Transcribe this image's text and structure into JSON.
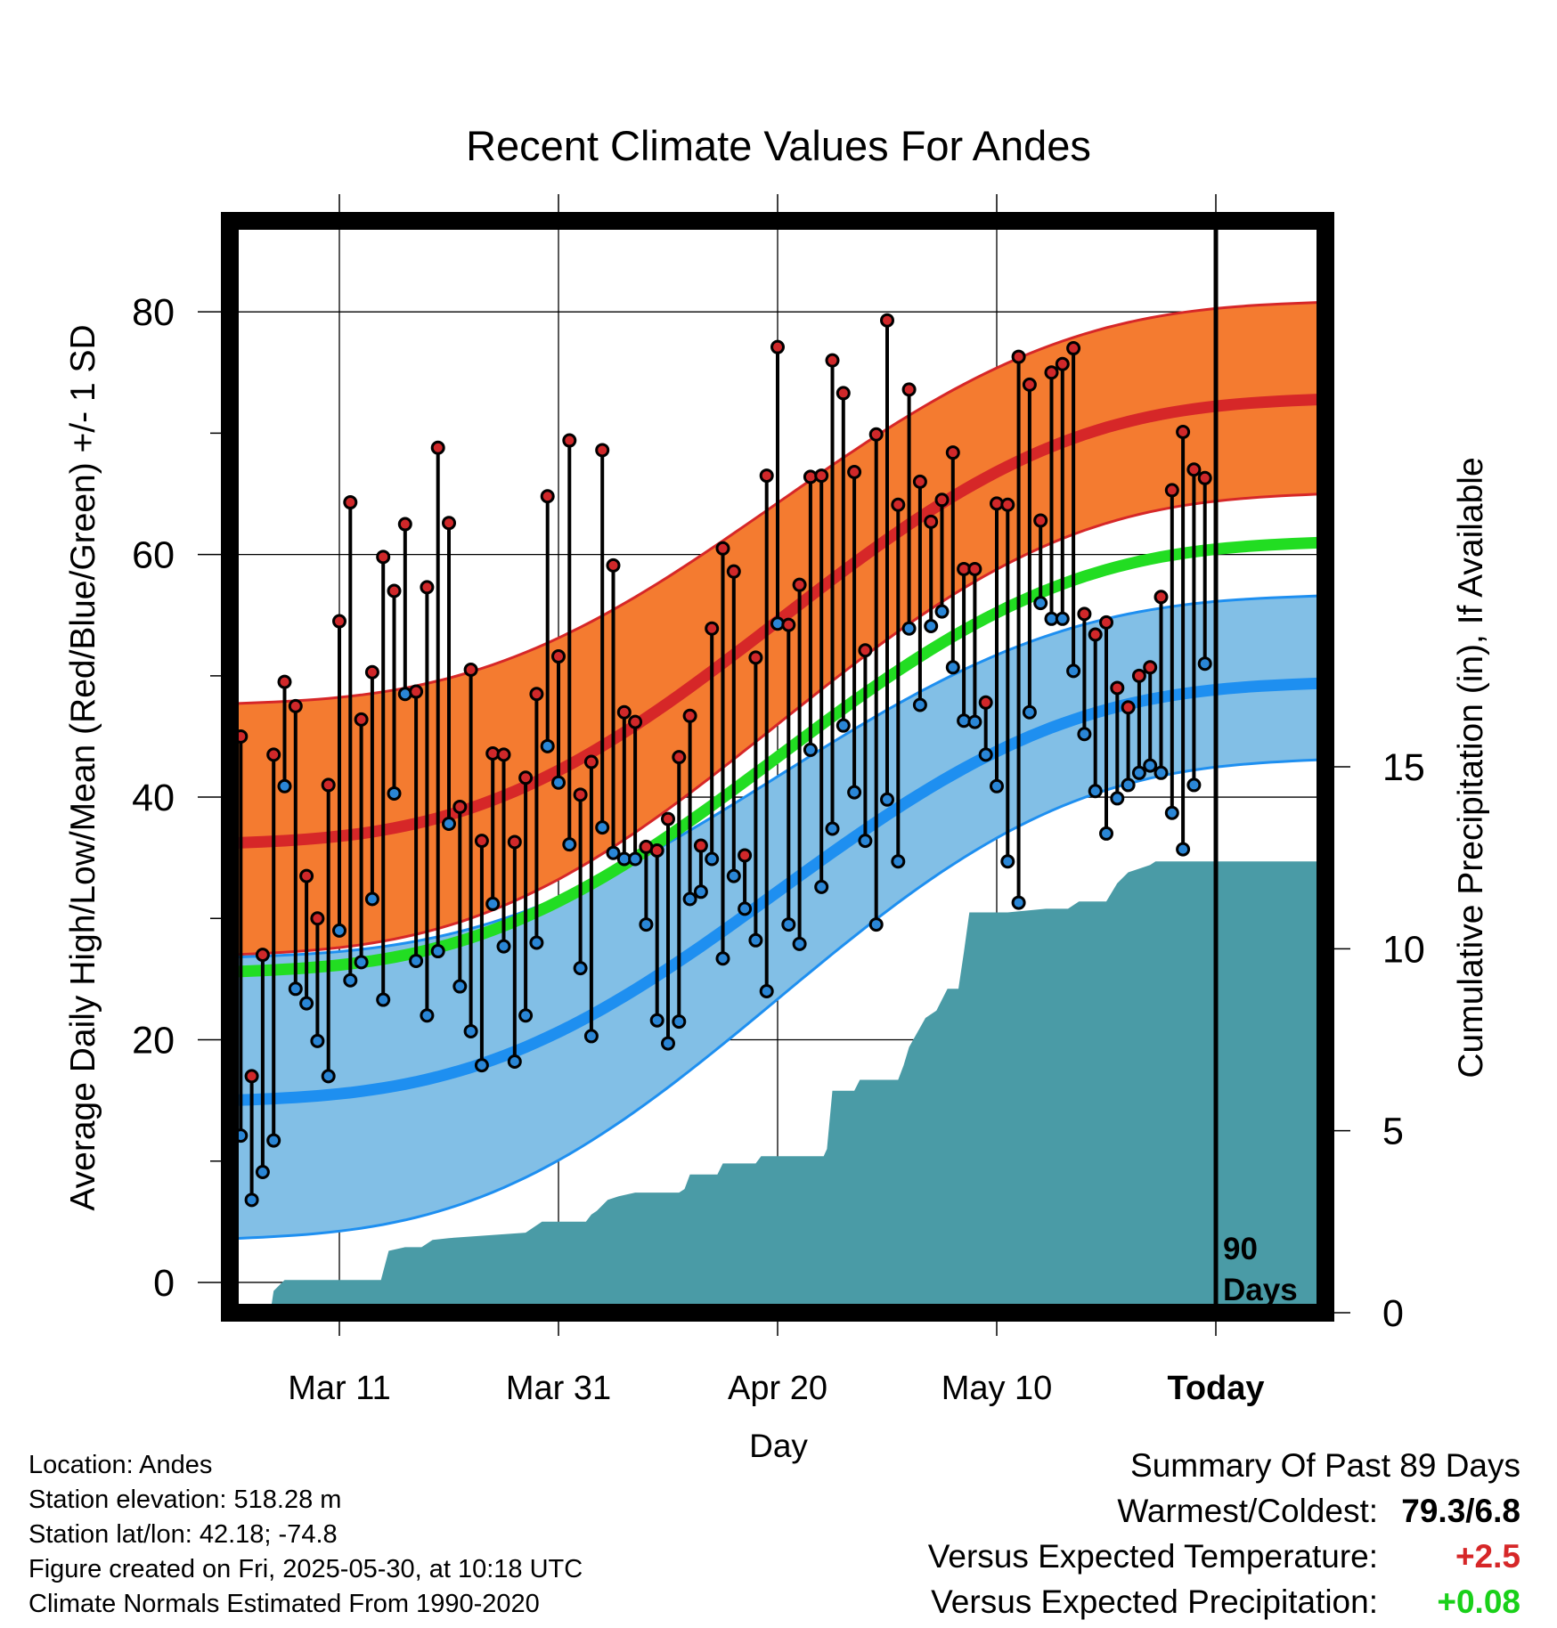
{
  "chart_data": {
    "type": "line",
    "title": "Recent Climate Values For Andes",
    "xlabel": "Day",
    "ylabel": "Average Daily High/Low/Mean (Red/Blue/Green) +/- 1 SD",
    "y2label": "Cumulative Precipitation (in), If Available",
    "x_range_days": [
      -90,
      10
    ],
    "x_ticks": [
      {
        "day": -80,
        "label": "Mar 11"
      },
      {
        "day": -60,
        "label": "Mar 31"
      },
      {
        "day": -40,
        "label": "Apr 20"
      },
      {
        "day": -20,
        "label": "May 10"
      },
      {
        "day": 0,
        "label": "Today"
      }
    ],
    "ylim": [
      -2.5,
      87.5
    ],
    "y_ticks": [
      0,
      20,
      40,
      60,
      80
    ],
    "y2lim": [
      0,
      30
    ],
    "y2_ticks": [
      0,
      5,
      10,
      15
    ],
    "today_marker_label_line1": "90",
    "today_marker_label_line2": "Days",
    "normal_high": {
      "start": 36.2,
      "end": 72.8,
      "sd_upper_start": 47.7,
      "sd_upper_end": 80.8,
      "sd_lower_start": 27.0,
      "sd_lower_end": 65.0
    },
    "normal_mean": {
      "start": 25.6,
      "end": 61.0
    },
    "normal_low": {
      "start": 15.0,
      "end": 49.4,
      "sd_upper_start": 26.8,
      "sd_upper_end": 56.6,
      "sd_lower_start": 3.6,
      "sd_lower_end": 43.1
    },
    "colors": {
      "high_band": "#f47b30",
      "high_mean_line": "#d62728",
      "mean_line": "#22dd22",
      "low_band": "#82bfe6",
      "low_mean_line": "#1e8ff0",
      "precip_fill": "#4a9ba6",
      "high_marker": "#d0282a",
      "low_marker": "#2a86d6"
    },
    "series": [
      {
        "name": "High",
        "values": [
          45.0,
          17.0,
          27.0,
          43.5,
          49.5,
          47.5,
          33.5,
          30.0,
          41.0,
          54.5,
          64.3,
          46.4,
          50.3,
          59.8,
          57.0,
          62.5,
          48.7,
          57.3,
          68.8,
          62.6,
          39.2,
          50.5,
          36.4,
          43.6,
          43.5,
          36.3,
          41.6,
          48.5,
          64.8,
          51.6,
          69.4,
          40.2,
          42.9,
          68.6,
          59.1,
          47.0,
          46.2,
          35.9,
          35.6,
          38.2,
          43.3,
          46.7,
          36.0,
          53.9,
          60.5,
          58.6,
          35.2,
          51.5,
          66.5,
          77.1,
          54.2,
          57.5,
          66.4,
          66.5,
          76.0,
          73.3,
          66.8,
          52.1,
          69.9,
          79.3,
          64.1,
          73.6,
          66.0,
          62.7,
          64.5,
          68.4,
          58.8,
          58.8,
          47.8,
          64.2,
          64.1,
          76.3,
          74.0,
          62.8,
          75.0,
          75.7,
          77.0,
          55.1,
          53.4,
          54.4,
          49.0,
          47.4,
          50.0,
          50.7,
          56.5,
          65.3,
          70.1,
          67.0,
          66.3
        ]
      },
      {
        "name": "Low",
        "values": [
          12.1,
          6.8,
          9.1,
          11.7,
          40.9,
          24.2,
          23.0,
          19.9,
          17.0,
          29.0,
          24.9,
          26.4,
          31.6,
          23.3,
          40.3,
          48.5,
          26.5,
          22.0,
          27.3,
          37.8,
          24.4,
          20.7,
          17.9,
          31.2,
          27.7,
          18.2,
          22.0,
          28.0,
          44.2,
          41.2,
          36.1,
          25.9,
          20.3,
          37.5,
          35.4,
          34.9,
          34.9,
          29.5,
          21.6,
          19.7,
          21.5,
          31.6,
          32.2,
          34.9,
          26.7,
          33.5,
          30.8,
          28.2,
          24.0,
          54.3,
          29.5,
          27.9,
          43.9,
          32.6,
          37.4,
          45.9,
          40.4,
          36.4,
          29.5,
          39.8,
          34.7,
          53.9,
          47.6,
          54.1,
          55.3,
          50.7,
          46.3,
          46.2,
          43.5,
          40.9,
          34.7,
          31.3,
          47.0,
          56.0,
          54.7,
          54.7,
          50.4,
          45.2,
          40.5,
          37.0,
          39.9,
          41.0,
          42.0,
          42.6,
          42.0,
          38.7,
          35.7,
          41.0,
          51.0
        ]
      }
    ],
    "precip_steps": [
      [
        -86.3,
        0.0
      ],
      [
        -86.0,
        0.6
      ],
      [
        -85.0,
        0.9
      ],
      [
        -76.2,
        0.9
      ],
      [
        -75.5,
        1.7
      ],
      [
        -74.0,
        1.8
      ],
      [
        -72.5,
        1.8
      ],
      [
        -71.5,
        2.0
      ],
      [
        -70.0,
        2.05
      ],
      [
        -63.0,
        2.2
      ],
      [
        -61.5,
        2.5
      ],
      [
        -57.5,
        2.5
      ],
      [
        -57.0,
        2.7
      ],
      [
        -56.5,
        2.8
      ],
      [
        -55.5,
        3.1
      ],
      [
        -54.5,
        3.2
      ],
      [
        -53.0,
        3.3
      ],
      [
        -49.0,
        3.3
      ],
      [
        -48.5,
        3.4
      ],
      [
        -48.0,
        3.8
      ],
      [
        -45.5,
        3.8
      ],
      [
        -45.0,
        4.1
      ],
      [
        -42.0,
        4.1
      ],
      [
        -41.5,
        4.3
      ],
      [
        -35.8,
        4.3
      ],
      [
        -35.5,
        4.5
      ],
      [
        -35.0,
        6.1
      ],
      [
        -33.0,
        6.1
      ],
      [
        -32.5,
        6.4
      ],
      [
        -29.0,
        6.4
      ],
      [
        -28.5,
        6.8
      ],
      [
        -28.0,
        7.3
      ],
      [
        -26.5,
        8.1
      ],
      [
        -25.5,
        8.3
      ],
      [
        -24.5,
        8.9
      ],
      [
        -23.5,
        8.9
      ],
      [
        -23.0,
        9.9
      ],
      [
        -22.5,
        11.0
      ],
      [
        -19.0,
        11.0
      ],
      [
        -15.5,
        11.1
      ],
      [
        -13.5,
        11.1
      ],
      [
        -12.5,
        11.3
      ],
      [
        -10.0,
        11.3
      ],
      [
        -9.0,
        11.8
      ],
      [
        -8.0,
        12.1
      ],
      [
        -6.0,
        12.3
      ],
      [
        -5.5,
        12.4
      ],
      [
        -4.5,
        12.4
      ],
      [
        10.0,
        12.4
      ]
    ]
  },
  "info": {
    "location": "Location: Andes",
    "elevation": "Station elevation: 518.28 m",
    "latlon": "Station lat/lon: 42.18; -74.8",
    "created": "Figure created on Fri, 2025-05-30, at 10:18 UTC",
    "normals": "Climate Normals Estimated From 1990-2020"
  },
  "summary": {
    "title": "Summary Of Past 89 Days",
    "warm_cold_label": "Warmest/Coldest:",
    "warm_cold_value": "79.3/6.8",
    "temp_label": "Versus Expected Temperature:",
    "temp_value": "+2.5",
    "precip_label": "Versus Expected Precipitation:",
    "precip_value": "+0.08",
    "temp_value_color": "#d62728",
    "precip_value_color": "#19d019"
  }
}
